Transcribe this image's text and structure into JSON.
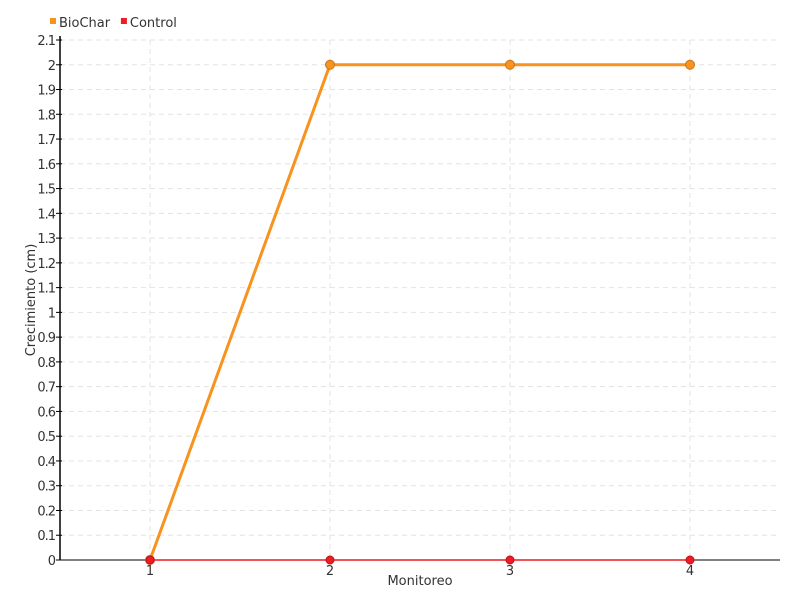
{
  "chart_data": {
    "type": "line",
    "xlabel": "Monitoreo",
    "ylabel": "Crecimiento (cm)",
    "categories": [
      "1",
      "2",
      "3",
      "4"
    ],
    "ylim": [
      0,
      2.1
    ],
    "yticks": [
      "0",
      "0.1",
      "0.2",
      "0.3",
      "0.4",
      "0.5",
      "0.6",
      "0.7",
      "0.8",
      "0.9",
      "1",
      "1.1",
      "1.2",
      "1.3",
      "1.4",
      "1.5",
      "1.6",
      "1.7",
      "1.8",
      "1.9",
      "2",
      "2.1"
    ],
    "grid": true,
    "legend_position": "top-left",
    "series": [
      {
        "name": "BioChar",
        "values": [
          0,
          2,
          2,
          2
        ],
        "color": "#f7931e"
      },
      {
        "name": "Control",
        "values": [
          0,
          0,
          0,
          0
        ],
        "color": "#ee1c25"
      }
    ]
  }
}
